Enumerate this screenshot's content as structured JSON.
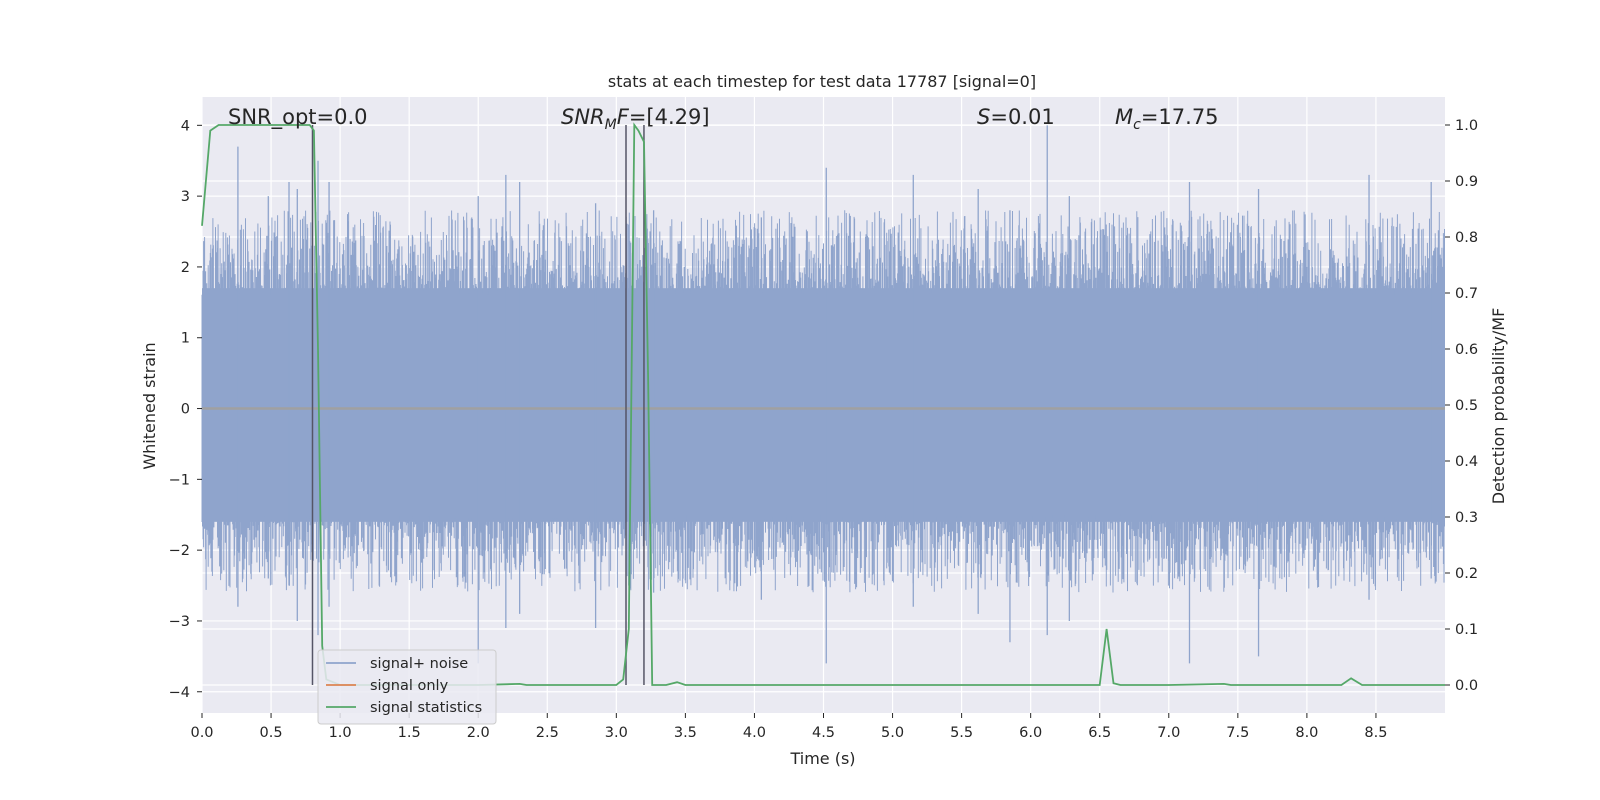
{
  "chart_data": {
    "type": "line",
    "title": "stats at each timestep for test data 17787 [signal=0]",
    "xlabel": "Time (s)",
    "ylabel_left": "Whitened strain",
    "ylabel_right": "Detection probability/MF",
    "xlim": [
      0.0,
      9.0
    ],
    "ylim_left": [
      -4.3,
      4.4
    ],
    "ylim_right": [
      -0.05,
      1.05
    ],
    "x_ticks": [
      0.0,
      0.5,
      1.0,
      1.5,
      2.0,
      2.5,
      3.0,
      3.5,
      4.0,
      4.5,
      5.0,
      5.5,
      6.0,
      6.5,
      7.0,
      7.5,
      8.0,
      8.5
    ],
    "x_tick_labels": [
      "0.0",
      "0.5",
      "1.0",
      "1.5",
      "2.0",
      "2.5",
      "3.0",
      "3.5",
      "4.0",
      "4.5",
      "5.0",
      "5.5",
      "6.0",
      "6.5",
      "7.0",
      "7.5",
      "8.0",
      "8.5"
    ],
    "y_left_ticks": [
      -4,
      -3,
      -2,
      -1,
      0,
      1,
      2,
      3,
      4
    ],
    "y_left_tick_labels": [
      "−4",
      "−3",
      "−2",
      "−1",
      "0",
      "1",
      "2",
      "3",
      "4"
    ],
    "y_right_ticks": [
      0.0,
      0.1,
      0.2,
      0.3,
      0.4,
      0.5,
      0.6,
      0.7,
      0.8,
      0.9,
      1.0
    ],
    "y_right_tick_labels": [
      "0.0",
      "0.1",
      "0.2",
      "0.3",
      "0.4",
      "0.5",
      "0.6",
      "0.7",
      "0.8",
      "0.9",
      "1.0"
    ],
    "grid": true,
    "legend_placement": "lower-left",
    "annotations": {
      "snr_opt": "SNR_opt=0.0",
      "snr_mf_main": "SNR",
      "snr_mf_sub": "M",
      "snr_mf_rest": "F=[4.29]",
      "s_main": "S",
      "s_rest": "=0.01",
      "mc_main": "M",
      "mc_sub": "c",
      "mc_rest": "=17.75"
    },
    "vertical_markers_s": [
      0.8,
      3.07,
      3.2
    ],
    "series": [
      {
        "name": "signal+ noise",
        "axis": "left",
        "color": "#8fa4cc",
        "description_envelope": {
          "core_range": [
            -1.6,
            1.7
          ],
          "spike_times": [
            0.26,
            0.48,
            0.63,
            0.69,
            0.84,
            0.92,
            2.0,
            2.2,
            2.3,
            2.85,
            3.09,
            3.27,
            4.05,
            4.52,
            5.15,
            5.62,
            5.85,
            6.12,
            6.28,
            7.15,
            7.65,
            8.45,
            8.9
          ],
          "spike_up": [
            3.7,
            3.0,
            3.2,
            3.1,
            3.5,
            3.2,
            3.0,
            3.3,
            3.2,
            2.9,
            2.6,
            2.8,
            2.7,
            3.4,
            3.3,
            3.1,
            2.8,
            4.0,
            3.0,
            3.2,
            3.1,
            3.3,
            3.2
          ],
          "spike_down": [
            -2.8,
            -2.4,
            -2.5,
            -3.0,
            -3.2,
            -2.8,
            -3.6,
            -3.1,
            -2.9,
            -3.1,
            -2.5,
            -2.6,
            -2.7,
            -3.6,
            -2.8,
            -2.9,
            -3.3,
            -3.2,
            -3.0,
            -3.6,
            -3.5,
            -2.7,
            -2.4
          ]
        }
      },
      {
        "name": "signal only",
        "axis": "left",
        "color": "#dd8452",
        "x": [
          0.0,
          9.0
        ],
        "y": [
          0.0,
          0.0
        ]
      },
      {
        "name": "signal statistics",
        "axis": "right",
        "color": "#55a868",
        "x": [
          0.0,
          0.06,
          0.12,
          0.2,
          0.5,
          0.78,
          0.81,
          0.84,
          0.87,
          0.9,
          1.0,
          2.0,
          2.3,
          2.35,
          3.0,
          3.05,
          3.09,
          3.13,
          3.16,
          3.2,
          3.23,
          3.26,
          3.3,
          3.36,
          3.44,
          3.5,
          4.0,
          5.0,
          6.0,
          6.5,
          6.55,
          6.6,
          6.65,
          7.0,
          7.4,
          7.45,
          8.0,
          8.25,
          8.32,
          8.4,
          9.0
        ],
        "y": [
          0.82,
          0.99,
          1.0,
          1.0,
          1.0,
          1.0,
          0.99,
          0.6,
          0.07,
          0.01,
          0.0,
          0.0,
          0.002,
          0.0,
          0.0,
          0.01,
          0.1,
          1.0,
          0.99,
          0.97,
          0.55,
          0.0,
          0.0,
          0.0,
          0.005,
          0.0,
          0.0,
          0.0,
          0.0,
          0.0,
          0.1,
          0.003,
          0.0,
          0.0,
          0.002,
          0.0,
          0.0,
          0.0,
          0.012,
          0.0,
          0.0
        ]
      }
    ]
  }
}
